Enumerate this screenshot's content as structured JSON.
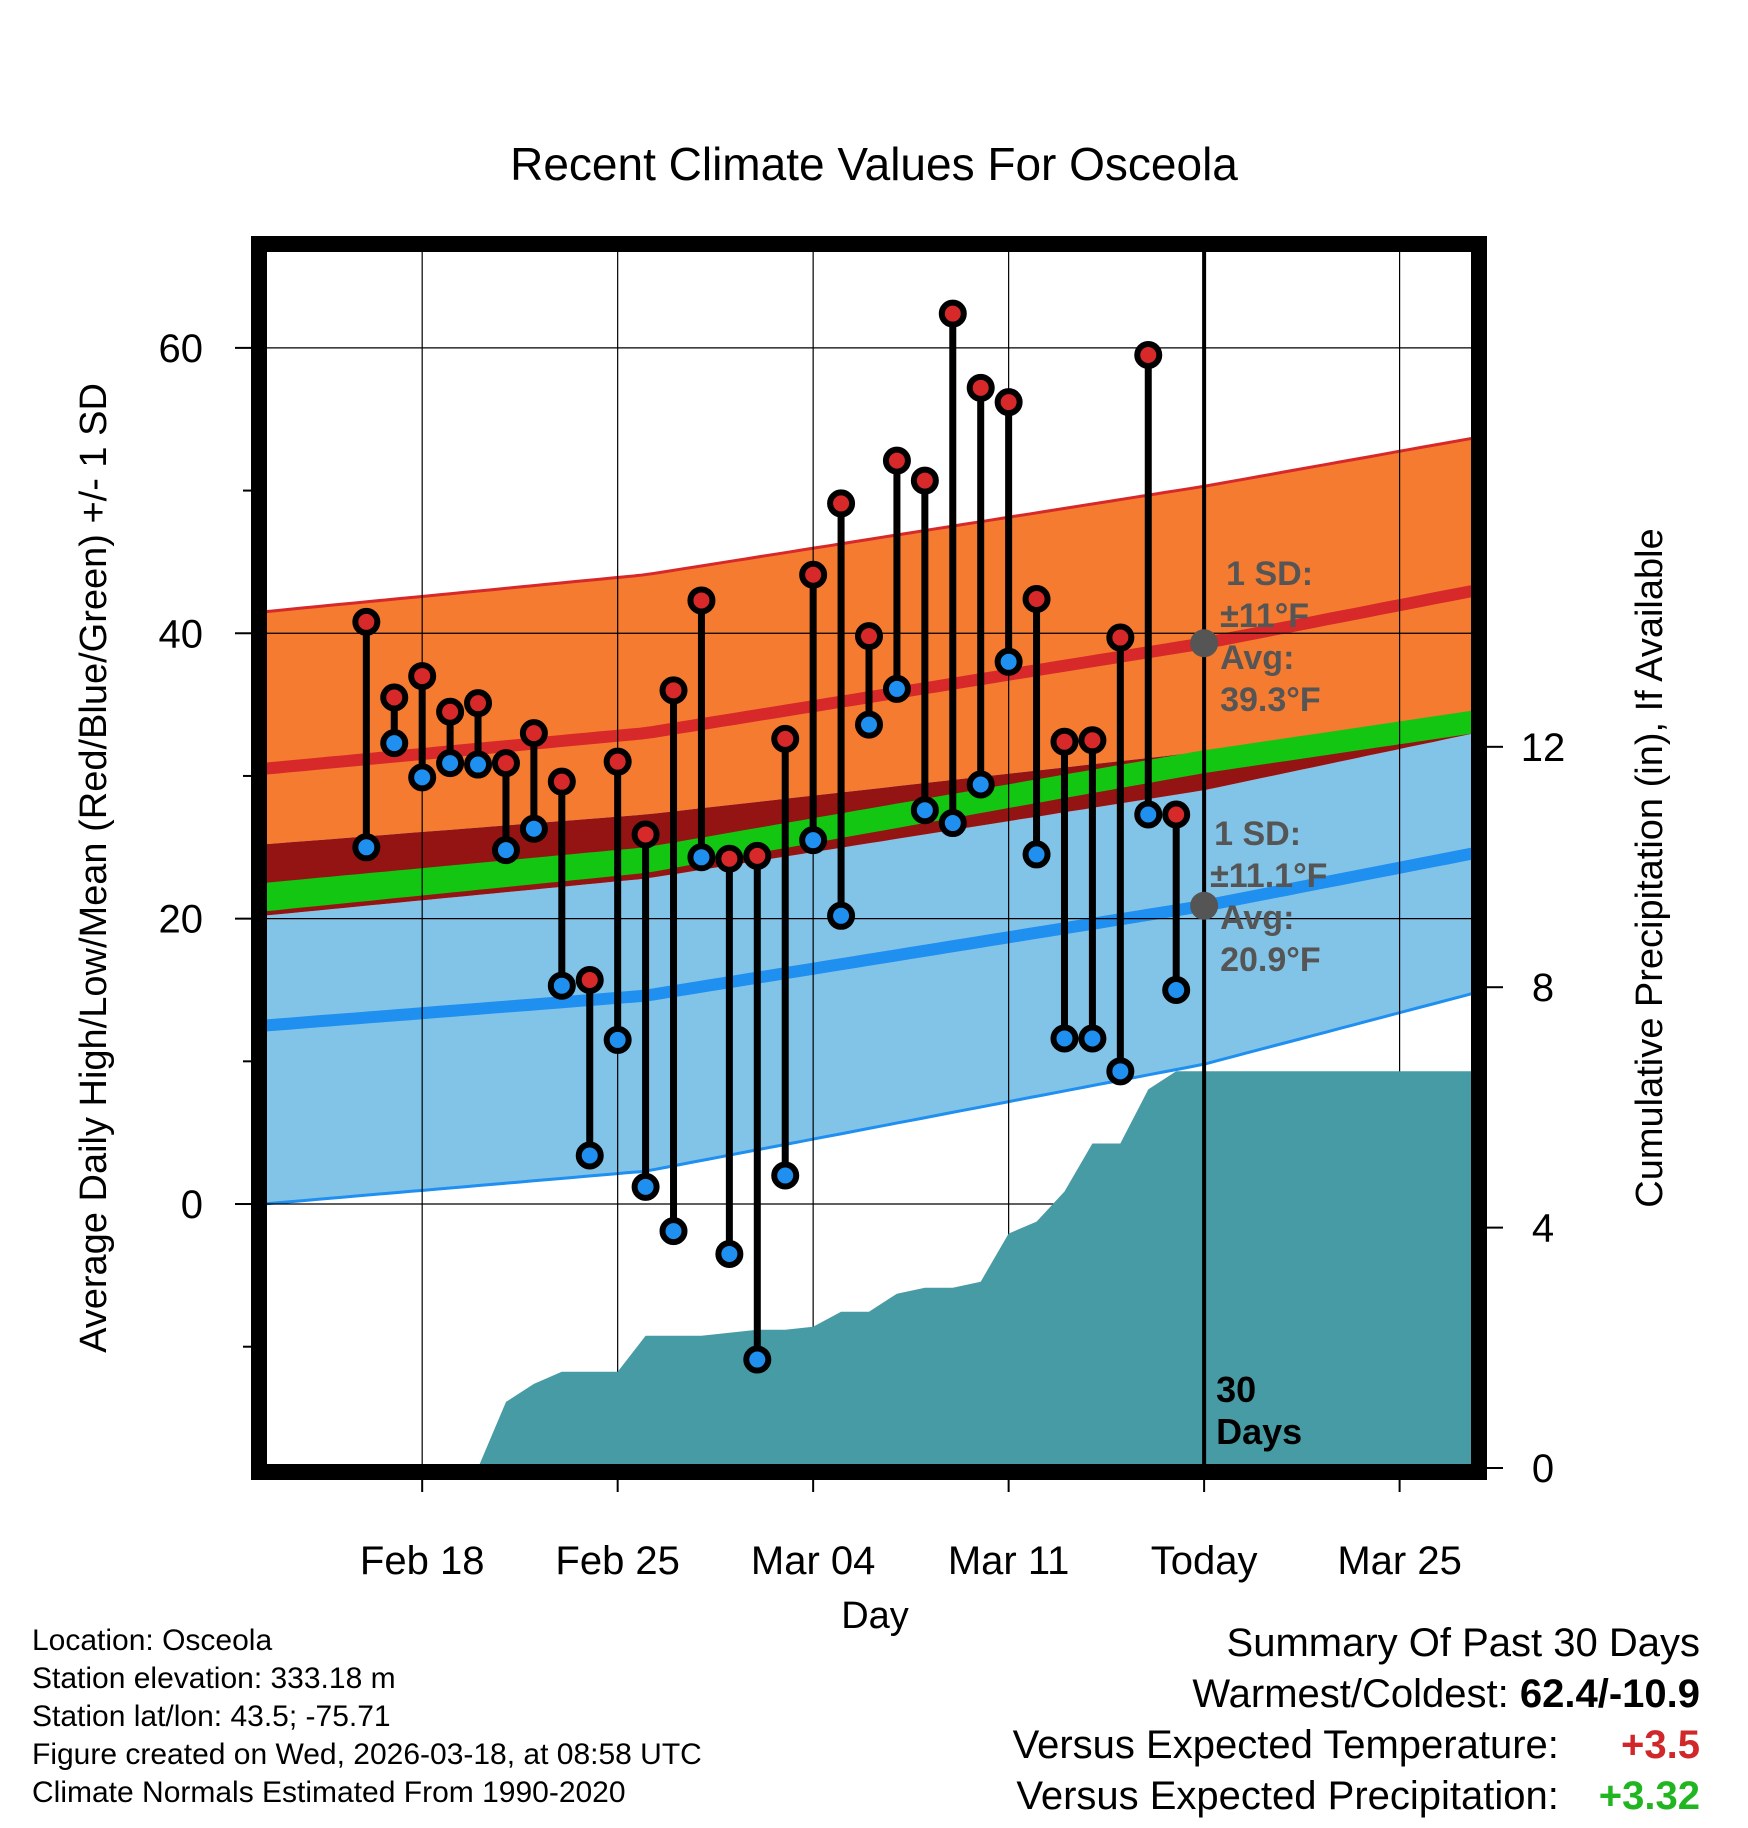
{
  "chart_data": {
    "type": "climate_range",
    "title": "Recent Climate Values For Osceola",
    "xlabel": "Day",
    "ylabel": "Average Daily High/Low/Mean (Red/Blue/Green) +/- 1 SD",
    "y2label": "Cumulative Precipitation (in), If Available",
    "ylim": [
      -18.5,
      67
    ],
    "y_ticks": [
      0,
      20,
      40,
      60
    ],
    "y2lim": [
      0,
      20.3
    ],
    "y2_ticks": [
      0,
      4,
      8,
      12
    ],
    "x_range_days": [
      -33.7,
      9.7
    ],
    "x_ticks": [
      {
        "day": -28,
        "label": "Feb 18"
      },
      {
        "day": -21,
        "label": "Feb 25"
      },
      {
        "day": -14,
        "label": "Mar 04"
      },
      {
        "day": -7,
        "label": "Mar 11"
      },
      {
        "day": 0,
        "label": "Today"
      },
      {
        "day": 7,
        "label": "Mar 25"
      }
    ],
    "today_label": "30\nDays",
    "normals": {
      "high_avg": [
        [
          -33.7,
          30.5
        ],
        [
          -20,
          33.0
        ],
        [
          0,
          39.3
        ],
        [
          9.7,
          43.0
        ]
      ],
      "high_upper": [
        [
          -33.7,
          41.5
        ],
        [
          -20,
          44.1
        ],
        [
          0,
          50.3
        ],
        [
          9.7,
          53.7
        ]
      ],
      "high_lower": [
        [
          -33.7,
          25.2
        ],
        [
          -20,
          27.3
        ],
        [
          0,
          31.7
        ],
        [
          9.7,
          34.2
        ]
      ],
      "low_avg": [
        [
          -33.7,
          12.5
        ],
        [
          -20,
          14.6
        ],
        [
          0,
          20.9
        ],
        [
          9.7,
          24.6
        ]
      ],
      "low_upper": [
        [
          -33.7,
          20.2
        ],
        [
          -20,
          22.8
        ],
        [
          0,
          29.0
        ],
        [
          9.7,
          33.0
        ]
      ],
      "low_lower": [
        [
          -33.7,
          0.0
        ],
        [
          -20,
          2.3
        ],
        [
          0,
          9.8
        ],
        [
          9.7,
          14.8
        ]
      ],
      "mean_band": [
        [
          -33.7,
          20.5,
          22.5
        ],
        [
          -20,
          23.2,
          25.0
        ],
        [
          0,
          30.2,
          31.8
        ],
        [
          9.7,
          33.0,
          34.6
        ]
      ]
    },
    "high_sd_label": "1 SD:",
    "high_sd_value": "±11°F",
    "high_avg_label": "Avg:",
    "high_avg_value": "39.3°F",
    "low_sd_label": "1 SD:",
    "low_sd_value": "±11.1°F",
    "low_avg_label": "Avg:",
    "low_avg_value": "20.9°F",
    "daily": [
      {
        "day": -30,
        "high": 40.8,
        "low": 25.0
      },
      {
        "day": -29,
        "high": 35.5,
        "low": 32.3
      },
      {
        "day": -28,
        "high": 37.0,
        "low": 29.9
      },
      {
        "day": -27,
        "high": 34.5,
        "low": 30.9
      },
      {
        "day": -26,
        "high": 35.1,
        "low": 30.8
      },
      {
        "day": -25,
        "high": 30.9,
        "low": 24.8
      },
      {
        "day": -24,
        "high": 33.0,
        "low": 26.3
      },
      {
        "day": -23,
        "high": 29.6,
        "low": 15.3
      },
      {
        "day": -22,
        "high": 15.7,
        "low": 3.4
      },
      {
        "day": -21,
        "high": 31.0,
        "low": 11.5
      },
      {
        "day": -20,
        "high": 25.9,
        "low": 1.2
      },
      {
        "day": -19,
        "high": 36.0,
        "low": -1.9
      },
      {
        "day": -18,
        "high": 42.3,
        "low": 24.3
      },
      {
        "day": -17,
        "high": 24.2,
        "low": -3.5
      },
      {
        "day": -16,
        "high": 24.4,
        "low": -10.9
      },
      {
        "day": -15,
        "high": 32.6,
        "low": 2.0
      },
      {
        "day": -14,
        "high": 44.1,
        "low": 25.5
      },
      {
        "day": -13,
        "high": 49.1,
        "low": 20.2
      },
      {
        "day": -12,
        "high": 39.8,
        "low": 33.6
      },
      {
        "day": -11,
        "high": 52.1,
        "low": 36.1
      },
      {
        "day": -10,
        "high": 50.7,
        "low": 27.6
      },
      {
        "day": -9,
        "high": 62.4,
        "low": 26.7
      },
      {
        "day": -8,
        "high": 57.2,
        "low": 29.4
      },
      {
        "day": -7,
        "high": 56.2,
        "low": 38.0
      },
      {
        "day": -6,
        "high": 42.4,
        "low": 24.5
      },
      {
        "day": -5,
        "high": 32.4,
        "low": 11.6
      },
      {
        "day": -4,
        "high": 32.5,
        "low": 11.6
      },
      {
        "day": -3,
        "high": 39.7,
        "low": 9.3
      },
      {
        "day": -2,
        "high": 59.5,
        "low": 27.3
      },
      {
        "day": -1,
        "high": 27.3,
        "low": 15.0
      }
    ],
    "precip_cumulative": [
      [
        -30,
        0.0
      ],
      [
        -29,
        0.0
      ],
      [
        -28,
        0.0
      ],
      [
        -27,
        0.0
      ],
      [
        -26,
        0.0
      ],
      [
        -25,
        1.1
      ],
      [
        -24,
        1.4
      ],
      [
        -23,
        1.6
      ],
      [
        -22,
        1.6
      ],
      [
        -21,
        1.6
      ],
      [
        -20,
        2.2
      ],
      [
        -19,
        2.2
      ],
      [
        -18,
        2.2
      ],
      [
        -17,
        2.25
      ],
      [
        -16,
        2.3
      ],
      [
        -15,
        2.3
      ],
      [
        -14,
        2.35
      ],
      [
        -13,
        2.6
      ],
      [
        -12,
        2.6
      ],
      [
        -11,
        2.9
      ],
      [
        -10,
        3.0
      ],
      [
        -9,
        3.0
      ],
      [
        -8,
        3.1
      ],
      [
        -7,
        3.9
      ],
      [
        -6,
        4.1
      ],
      [
        -5,
        4.6
      ],
      [
        -4,
        5.4
      ],
      [
        -3,
        5.4
      ],
      [
        -2,
        6.3
      ],
      [
        -1,
        6.6
      ],
      [
        0,
        6.6
      ],
      [
        9.7,
        6.6
      ]
    ]
  },
  "info": {
    "location": "Location: Osceola",
    "elevation": "Station elevation: 333.18 m",
    "latlon": "Station lat/lon: 43.5; -75.71",
    "created": "Figure created on Wed, 2026-03-18, at 08:58 UTC",
    "normals": "Climate Normals Estimated From 1990-2020"
  },
  "summary": {
    "title": "Summary Of Past 30 Days",
    "extremes_label": "Warmest/Coldest:",
    "extremes_value": "62.4/-10.9",
    "temp_label": "Versus Expected Temperature:",
    "temp_value": "+3.5",
    "temp_color": "#d0282a",
    "precip_label": "Versus Expected Precipitation:",
    "precip_value": "+3.32",
    "precip_color": "#22b522"
  },
  "colors": {
    "high_band": "#f47b2f",
    "high_line": "#d7282a",
    "low_band": "#82c3e8",
    "low_line": "#1f8ff0",
    "mean_band": "#12c612",
    "overlap": "#941414",
    "precip": "#479ba4",
    "annotation": "#555555"
  }
}
